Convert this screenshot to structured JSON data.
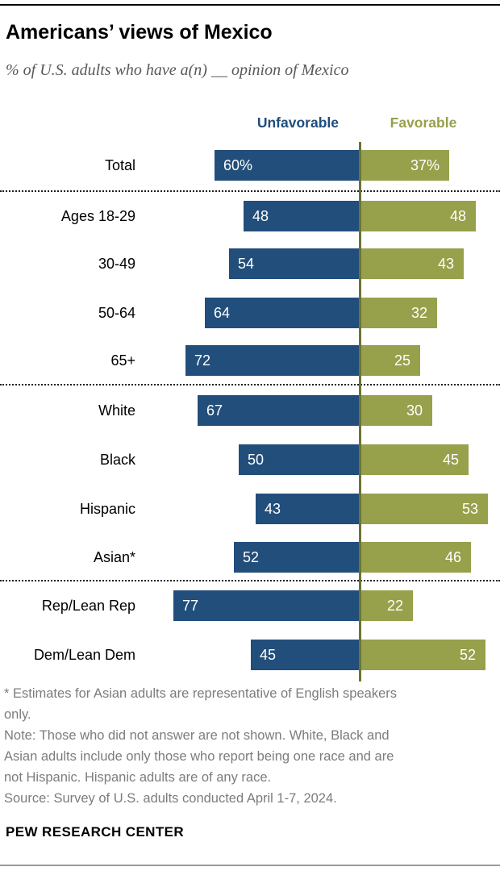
{
  "header": {
    "title": "Americans’ views of Mexico",
    "subtitle": "% of U.S. adults who have a(n) __ opinion of Mexico"
  },
  "legend": {
    "unfavorable": "Unfavorable",
    "favorable": "Favorable"
  },
  "chart_data": {
    "type": "bar",
    "variant": "diverging-horizontal",
    "title": "Americans’ views of Mexico",
    "subtitle": "% of U.S. adults who have a(n) __ opinion of Mexico",
    "legend_position": "top",
    "value_axis": "hidden, values labeled on bars, scale 0-100 (%)",
    "categories": [
      "Total",
      "Ages 18-29",
      "30-49",
      "50-64",
      "65+",
      "White",
      "Black",
      "Hispanic",
      "Asian*",
      "Rep/Lean Rep",
      "Dem/Lean Dem"
    ],
    "series": [
      {
        "name": "Unfavorable",
        "side": "left",
        "values": [
          60,
          48,
          54,
          64,
          72,
          67,
          50,
          43,
          52,
          77,
          45
        ]
      },
      {
        "name": "Favorable",
        "side": "right",
        "values": [
          37,
          48,
          43,
          32,
          25,
          30,
          45,
          53,
          46,
          22,
          52
        ]
      }
    ],
    "rows": [
      {
        "label": "Total",
        "group": 0,
        "unfavorable": 60,
        "favorable": 37,
        "unfavorable_text": "60%",
        "favorable_text": "37%"
      },
      {
        "label": "Ages 18-29",
        "group": 1,
        "unfavorable": 48,
        "favorable": 48,
        "unfavorable_text": "48",
        "favorable_text": "48"
      },
      {
        "label": "30-49",
        "group": 1,
        "unfavorable": 54,
        "favorable": 43,
        "unfavorable_text": "54",
        "favorable_text": "43"
      },
      {
        "label": "50-64",
        "group": 1,
        "unfavorable": 64,
        "favorable": 32,
        "unfavorable_text": "64",
        "favorable_text": "32"
      },
      {
        "label": "65+",
        "group": 1,
        "unfavorable": 72,
        "favorable": 25,
        "unfavorable_text": "72",
        "favorable_text": "25"
      },
      {
        "label": "White",
        "group": 2,
        "unfavorable": 67,
        "favorable": 30,
        "unfavorable_text": "67",
        "favorable_text": "30"
      },
      {
        "label": "Black",
        "group": 2,
        "unfavorable": 50,
        "favorable": 45,
        "unfavorable_text": "50",
        "favorable_text": "45"
      },
      {
        "label": "Hispanic",
        "group": 2,
        "unfavorable": 43,
        "favorable": 53,
        "unfavorable_text": "43",
        "favorable_text": "53"
      },
      {
        "label": "Asian*",
        "group": 2,
        "unfavorable": 52,
        "favorable": 46,
        "unfavorable_text": "52",
        "favorable_text": "46"
      },
      {
        "label": "Rep/Lean Rep",
        "group": 3,
        "unfavorable": 77,
        "favorable": 22,
        "unfavorable_text": "77",
        "favorable_text": "22"
      },
      {
        "label": "Dem/Lean Dem",
        "group": 3,
        "unfavorable": 45,
        "favorable": 52,
        "unfavorable_text": "45",
        "favorable_text": "52"
      }
    ],
    "colors": {
      "unfavorable": "#224E7B",
      "favorable": "#97A04B",
      "axis_line": "#6C7532",
      "bar_value_text": "#FFFFFF",
      "legend_unfavorable_text": "#1F4C7C",
      "legend_favorable_text": "#97A04B"
    }
  },
  "footnotes": {
    "lines": [
      "* Estimates for Asian adults are representative of English speakers",
      "only.",
      "Note: Those who did not answer are not shown. White, Black and",
      "Asian adults include only those who report being one race and are",
      "not Hispanic. Hispanic adults are of any race.",
      "Source: Survey of U.S. adults conducted April 1-7, 2024."
    ]
  },
  "footer": {
    "brand": "PEW RESEARCH CENTER"
  }
}
